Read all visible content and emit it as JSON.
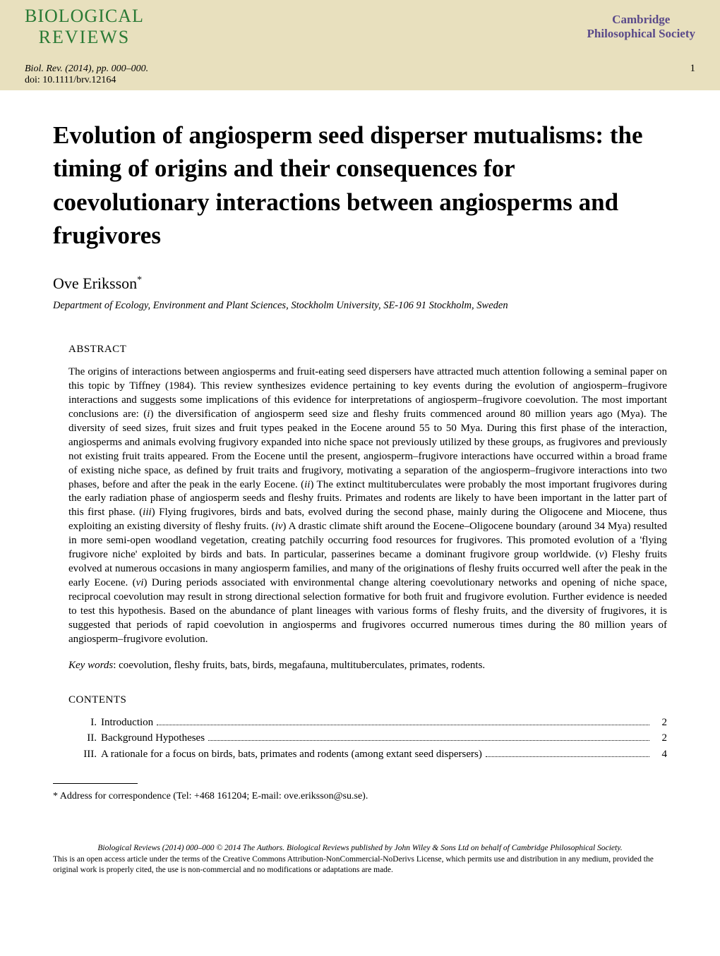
{
  "header": {
    "journal_line1": "BIOLOGICAL",
    "journal_line2": "REVIEWS",
    "publisher_line1": "Cambridge",
    "publisher_line2": "Philosophical Society",
    "citation": "Biol. Rev. (2014), pp. 000–000.",
    "doi": "doi: 10.1111/brv.12164",
    "page_number": "1"
  },
  "title": "Evolution of angiosperm seed disperser mutualisms: the timing of origins and their consequences for coevolutionary interactions between angiosperms and frugivores",
  "author": "Ove Eriksson",
  "author_suffix": "*",
  "affiliation": "Department of Ecology, Environment and Plant Sciences, Stockholm University, SE-106 91 Stockholm, Sweden",
  "abstract_header": "ABSTRACT",
  "abstract_body": "The origins of interactions between angiosperms and fruit-eating seed dispersers have attracted much attention following a seminal paper on this topic by Tiffney (1984). This review synthesizes evidence pertaining to key events during the evolution of angiosperm–frugivore interactions and suggests some implications of this evidence for interpretations of angiosperm–frugivore coevolution. The most important conclusions are: (i) the diversification of angiosperm seed size and fleshy fruits commenced around 80 million years ago (Mya). The diversity of seed sizes, fruit sizes and fruit types peaked in the Eocene around 55 to 50 Mya. During this first phase of the interaction, angiosperms and animals evolving frugivory expanded into niche space not previously utilized by these groups, as frugivores and previously not existing fruit traits appeared. From the Eocene until the present, angiosperm–frugivore interactions have occurred within a broad frame of existing niche space, as defined by fruit traits and frugivory, motivating a separation of the angiosperm–frugivore interactions into two phases, before and after the peak in the early Eocene. (ii) The extinct multituberculates were probably the most important frugivores during the early radiation phase of angiosperm seeds and fleshy fruits. Primates and rodents are likely to have been important in the latter part of this first phase. (iii) Flying frugivores, birds and bats, evolved during the second phase, mainly during the Oligocene and Miocene, thus exploiting an existing diversity of fleshy fruits. (iv) A drastic climate shift around the Eocene–Oligocene boundary (around 34 Mya) resulted in more semi-open woodland vegetation, creating patchily occurring food resources for frugivores. This promoted evolution of a 'flying frugivore niche' exploited by birds and bats. In particular, passerines became a dominant frugivore group worldwide. (v) Fleshy fruits evolved at numerous occasions in many angiosperm families, and many of the originations of fleshy fruits occurred well after the peak in the early Eocene. (vi) During periods associated with environmental change altering coevolutionary networks and opening of niche space, reciprocal coevolution may result in strong directional selection formative for both fruit and frugivore evolution. Further evidence is needed to test this hypothesis. Based on the abundance of plant lineages with various forms of fleshy fruits, and the diversity of frugivores, it is suggested that periods of rapid coevolution in angiosperms and frugivores occurred numerous times during the 80 million years of angiosperm–frugivore evolution.",
  "keywords_label": "Key words",
  "keywords_text": ": coevolution, fleshy fruits, bats, birds, megafauna, multituberculates, primates, rodents.",
  "contents_header": "CONTENTS",
  "toc": [
    {
      "num": "I.",
      "label": "Introduction",
      "page": "2"
    },
    {
      "num": "II.",
      "label": "Background Hypotheses",
      "page": "2"
    },
    {
      "num": "III.",
      "label": "A rationale for a focus on birds, bats, primates and rodents (among extant seed dispersers)",
      "page": "4"
    }
  ],
  "correspondence": "* Address for correspondence (Tel: +468 161204; E-mail: ove.eriksson@su.se).",
  "license_line1": "Biological Reviews (2014) 000–000 © 2014 The Authors. Biological Reviews published by John Wiley & Sons Ltd on behalf of Cambridge Philosophical Society.",
  "license_rest": "This is an open access article under the terms of the Creative Commons Attribution-NonCommercial-NoDerivs License, which permits use and distribution in any medium, provided the original work is properly cited, the use is non-commercial and no modifications or adaptations are made.",
  "colors": {
    "header_bg": "#e8e0be",
    "journal_green": "#2a7a35",
    "publisher_purple": "#5a4a8a",
    "text": "#000000",
    "background": "#ffffff"
  }
}
